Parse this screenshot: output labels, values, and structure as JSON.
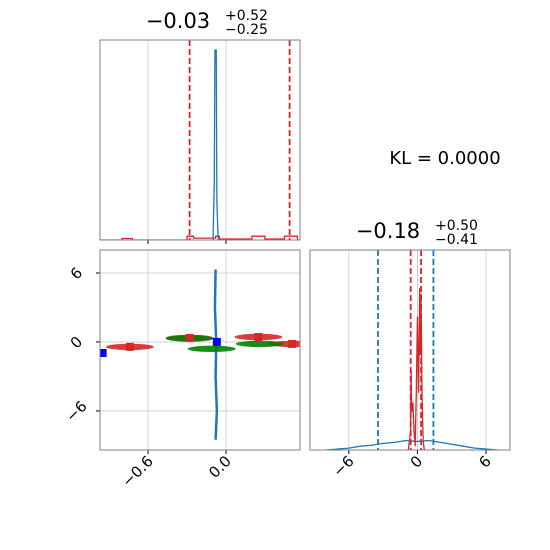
{
  "annotation": "KL = 0.0000",
  "chart_data": [
    {
      "type": "hist",
      "title": {
        "median": "−0.03",
        "upper": "+0.52",
        "lower": "−0.25"
      },
      "xlim": [
        -0.97,
        0.57
      ],
      "ylim": [
        0,
        1.05
      ],
      "xticks": [
        {
          "value": -0.6,
          "label": "−0.6"
        },
        {
          "value": 0,
          "label": "0.0"
        }
      ],
      "xtick_labels": false,
      "grid": true,
      "vlines": [
        {
          "value": -0.28,
          "color": "#d62728"
        },
        {
          "value": 0.49,
          "color": "#d62728"
        }
      ],
      "series": [
        {
          "color": "#d62728",
          "x": [
            -0.97,
            -0.8,
            -0.8,
            -0.72,
            -0.72,
            -0.3,
            -0.3,
            -0.25,
            -0.25,
            -0.08,
            -0.08,
            -0.05,
            -0.05,
            0.2,
            0.2,
            0.3,
            0.3,
            0.45,
            0.45,
            0.55,
            0.55,
            0.57
          ],
          "values": [
            0,
            0,
            0.008,
            0.008,
            0,
            0,
            0.02,
            0.02,
            0.01,
            0.01,
            0.02,
            0.02,
            0.005,
            0.005,
            0.02,
            0.02,
            0.005,
            0.005,
            0.02,
            0.02,
            0,
            0
          ]
        },
        {
          "color": "#1f77b4",
          "x": [
            -0.1,
            -0.09,
            -0.085,
            -0.08,
            -0.075,
            -0.07,
            -0.06
          ],
          "values": [
            0,
            0.3,
            1,
            0.98,
            1,
            0.2,
            0
          ]
        }
      ]
    },
    {
      "type": "scatter",
      "xlim": [
        -0.97,
        0.57
      ],
      "ylim": [
        -9.4,
        8
      ],
      "xticks": [
        {
          "value": -0.6,
          "label": "−0.6"
        },
        {
          "value": 0,
          "label": "0.0"
        }
      ],
      "yticks": [
        {
          "value": -6,
          "label": "−6"
        },
        0,
        6
      ],
      "grid": true,
      "series": [
        {
          "color": "#1f77b4",
          "marker": "line",
          "x": [
            -0.08,
            -0.085,
            -0.075,
            -0.08,
            -0.07,
            -0.08
          ],
          "values": [
            6.3,
            3,
            0,
            -3,
            -6,
            -8.5
          ]
        },
        {
          "color": "#d62728",
          "marker": "ellipse",
          "x": [
            -0.74,
            -0.28,
            0.25,
            0.51
          ],
          "values": [
            -0.43,
            0.35,
            0.43,
            -0.17
          ]
        },
        {
          "color": "#008000",
          "marker": "ellipse",
          "x": [
            -0.28,
            -0.11,
            0.26
          ],
          "values": [
            0.3,
            -0.6,
            -0.17
          ]
        },
        {
          "color": "#d62728",
          "marker": "square",
          "x": [
            -0.74,
            -0.28,
            0.25,
            0.51
          ],
          "values": [
            -0.43,
            0.35,
            0.43,
            -0.17
          ]
        },
        {
          "color": "#0000ff",
          "marker": "square",
          "x": [
            -0.95,
            -0.07
          ],
          "values": [
            -0.96,
            0
          ]
        }
      ]
    },
    {
      "type": "hist",
      "title": {
        "median": "−0.18",
        "upper": "+0.50",
        "lower": "−0.41"
      },
      "xlim": [
        -9.4,
        8.1
      ],
      "ylim": [
        0,
        1.05
      ],
      "xticks": [
        {
          "value": -6,
          "label": "−6"
        },
        0,
        6
      ],
      "xtick_labels": true,
      "grid": true,
      "vlines": [
        {
          "value": -3.45,
          "color": "#1f77b4"
        },
        {
          "value": 1.4,
          "color": "#1f77b4"
        },
        {
          "value": -0.59,
          "color": "#d62728"
        },
        {
          "value": 0.32,
          "color": "#d62728"
        }
      ],
      "series": [
        {
          "color": "#1f77b4",
          "x": [
            -8,
            -6,
            -5,
            -4,
            -3,
            -2,
            -1,
            0,
            1,
            2,
            3,
            4,
            5,
            6,
            7
          ],
          "values": [
            0,
            0.01,
            0.02,
            0.025,
            0.035,
            0.04,
            0.05,
            0.045,
            0.05,
            0.04,
            0.03,
            0.02,
            0.01,
            0.005,
            0
          ]
        },
        {
          "color": "#d62728",
          "x": [
            -0.8,
            -0.6,
            -0.55,
            -0.5,
            -0.4,
            -0.3,
            -0.2,
            -0.1,
            0,
            0.1,
            0.2,
            0.25,
            0.3,
            0.35,
            0.4,
            0.5,
            0.6
          ],
          "values": [
            0,
            0.1,
            0.42,
            0.2,
            0.25,
            0.1,
            0.02,
            0.3,
            0.7,
            0.3,
            0.85,
            0.5,
            0.82,
            0.6,
            0.3,
            0.05,
            0
          ]
        }
      ]
    }
  ]
}
